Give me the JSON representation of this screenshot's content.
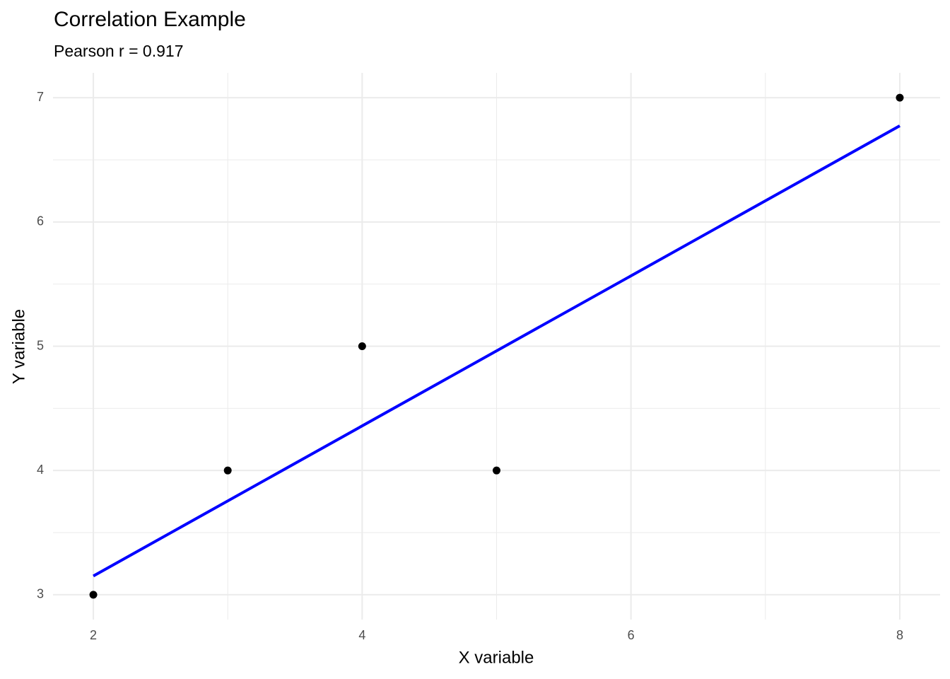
{
  "chart_data": {
    "type": "scatter",
    "title": "Correlation Example",
    "subtitle": "Pearson r = 0.917",
    "x_label": "X variable",
    "y_label": "Y variable",
    "x": [
      2,
      3,
      4,
      5,
      8
    ],
    "values": [
      3,
      4,
      5,
      4,
      7
    ],
    "color": "#000000",
    "fit_line": {
      "x": [
        2,
        8
      ],
      "values": [
        3.151,
        6.774
      ],
      "color": "#0000ff"
    },
    "xlim": [
      1.7,
      8.3
    ],
    "ylim": [
      2.8,
      7.2
    ],
    "xticks": [
      2,
      4,
      6,
      8
    ],
    "yticks": [
      3,
      4,
      5,
      6,
      7
    ],
    "minor_xticks": [
      3,
      5,
      7
    ],
    "minor_yticks": [
      3.5,
      4.5,
      5.5,
      6.5
    ],
    "grid": true
  }
}
